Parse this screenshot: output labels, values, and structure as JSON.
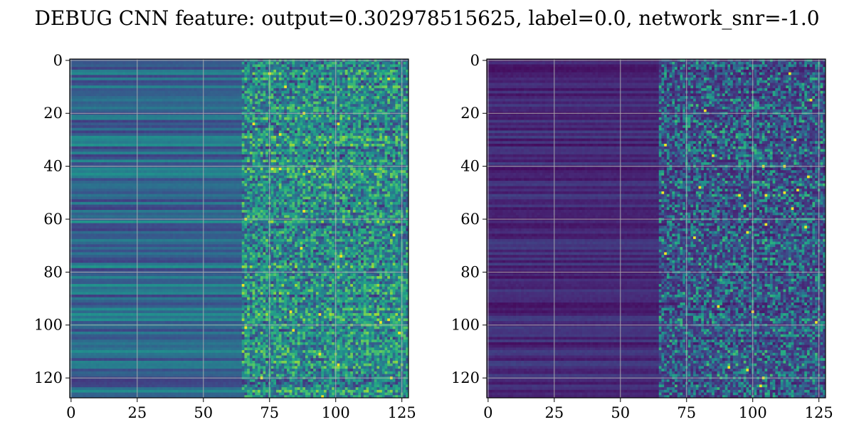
{
  "title": "DEBUG CNN feature: output=0.302978515625, label=0.0, network_snr=-1.0",
  "chart_data": [
    {
      "type": "heatmap",
      "title": "",
      "xlabel": "",
      "ylabel": "",
      "colormap": "viridis",
      "shape": [
        128,
        128
      ],
      "xlim": [
        0,
        127
      ],
      "ylim": [
        127,
        0
      ],
      "x_ticks": [
        0,
        25,
        50,
        75,
        100,
        125
      ],
      "y_ticks": [
        0,
        20,
        40,
        60,
        80,
        100,
        120
      ],
      "grid": true,
      "value_range": [
        0,
        1
      ],
      "description_values": {
        "low_column_mean": 0.35,
        "high_column_mean": 0.5,
        "transition_column": 65
      }
    },
    {
      "type": "heatmap",
      "title": "",
      "xlabel": "",
      "ylabel": "",
      "colormap": "viridis",
      "shape": [
        128,
        128
      ],
      "xlim": [
        0,
        127
      ],
      "ylim": [
        127,
        0
      ],
      "x_ticks": [
        0,
        25,
        50,
        75,
        100,
        125
      ],
      "y_ticks": [
        0,
        20,
        40,
        60,
        80,
        100,
        120
      ],
      "grid": true,
      "value_range": [
        0,
        1
      ],
      "description_values": {
        "low_column_mean": 0.12,
        "high_column_mean": 0.2,
        "transition_column": 65
      }
    }
  ]
}
